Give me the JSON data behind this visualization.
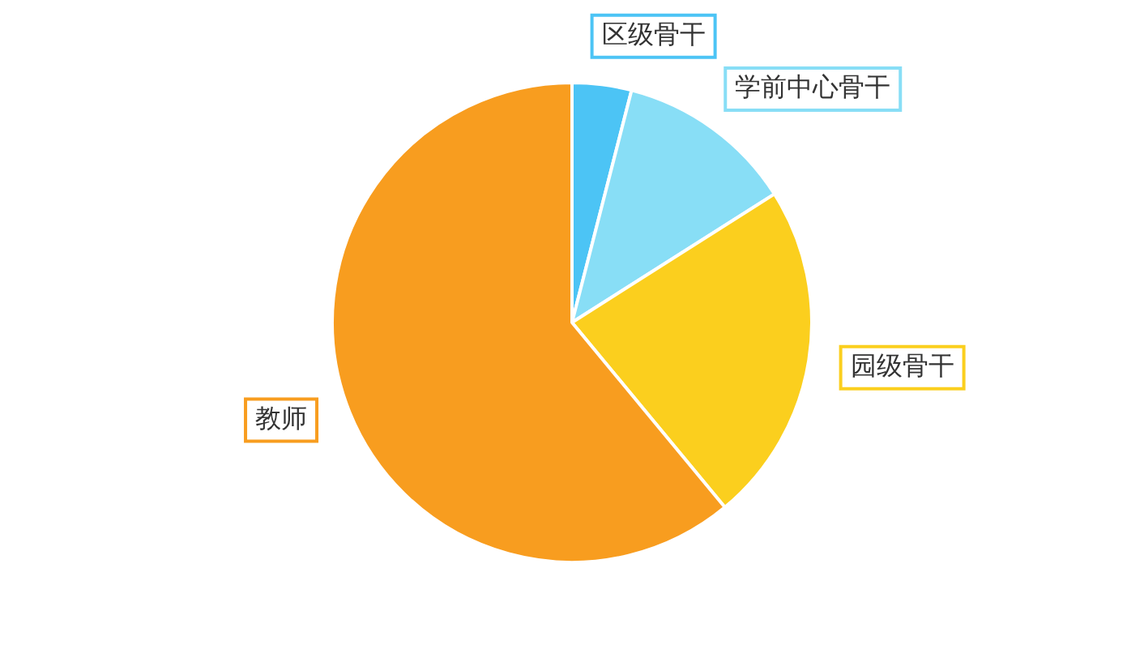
{
  "chart_data": {
    "type": "pie",
    "categories": [
      "区级骨干",
      "学前中心骨干",
      "园级骨干",
      "教师"
    ],
    "values": [
      4,
      12,
      23,
      61
    ],
    "colors": [
      "#4cc4f5",
      "#88def6",
      "#fbcf1e",
      "#f89d1f"
    ],
    "legend": false
  }
}
